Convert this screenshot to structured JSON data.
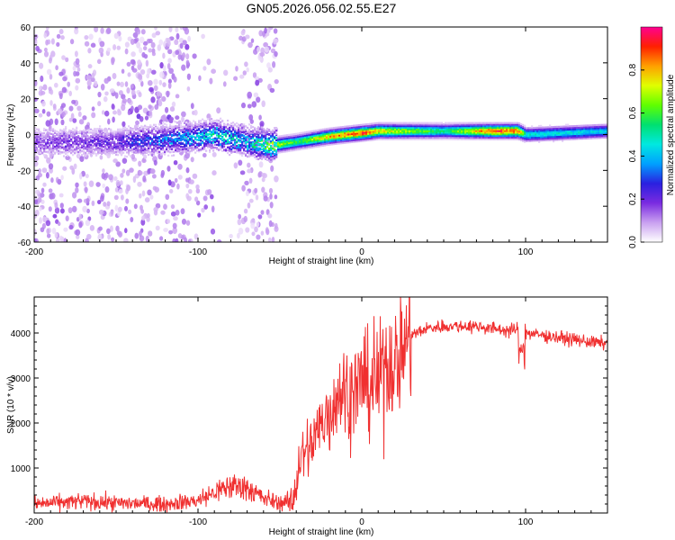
{
  "chart_data": [
    {
      "type": "heatmap",
      "title": "GN05.2026.056.02.55.E27",
      "xlabel": "Height of straight line (km)",
      "ylabel": "Frequency (Hz)",
      "xlim": [
        -200,
        150
      ],
      "ylim": [
        -60,
        60
      ],
      "x_ticks": [
        -200,
        -100,
        0,
        100
      ],
      "x_tick_labels": [
        "-200",
        "-100",
        "0",
        "100"
      ],
      "y_ticks": [
        -60,
        -40,
        -20,
        0,
        20,
        40,
        60
      ],
      "y_tick_labels": [
        "-60",
        "-40",
        "-20",
        "0",
        "20",
        "40",
        "60"
      ],
      "colorbar": {
        "label": "Normalized spectral amplitude",
        "range": [
          0,
          1
        ],
        "ticks": [
          0,
          0.2,
          0.4,
          0.6,
          0.8
        ],
        "tick_labels": [
          "0.0",
          "0.2",
          "0.4",
          "0.6",
          "0.8"
        ],
        "colors": [
          "#ffffff",
          "#c9a0f0",
          "#7a2be0",
          "#2a20e0",
          "#00a0ff",
          "#00e8e0",
          "#00e070",
          "#60ff00",
          "#e0ff00",
          "#ffa000",
          "#ff2000",
          "#ff0090"
        ]
      },
      "ridge": {
        "x": [
          -200,
          -150,
          -110,
          -90,
          -70,
          -55,
          -40,
          -20,
          0,
          10,
          50,
          80,
          95,
          100,
          150
        ],
        "frequency": [
          -4,
          -4,
          -2,
          0,
          -4,
          -6,
          -4,
          -1,
          1,
          2,
          2,
          2,
          2,
          0,
          2
        ],
        "amplitude": [
          0.2,
          0.25,
          0.45,
          0.55,
          0.5,
          0.75,
          0.6,
          0.85,
          0.95,
          0.8,
          0.55,
          0.95,
          0.9,
          0.5,
          0.45
        ]
      }
    },
    {
      "type": "line",
      "title": "",
      "xlabel": "Height of straight line (km)",
      "ylabel": "SNR (10 * v/v)",
      "xlim": [
        -200,
        150
      ],
      "ylim": [
        0,
        4800
      ],
      "x_ticks": [
        -200,
        -100,
        0,
        100
      ],
      "x_tick_labels": [
        "-200",
        "-100",
        "0",
        "100"
      ],
      "y_ticks": [
        1000,
        2000,
        3000,
        4000
      ],
      "y_tick_labels": [
        "1000",
        "2000",
        "3000",
        "4000"
      ],
      "color": "#f03030",
      "series": [
        {
          "name": "SNR",
          "x": [
            -200,
            -170,
            -150,
            -120,
            -100,
            -90,
            -80,
            -70,
            -60,
            -50,
            -42,
            -38,
            -30,
            -20,
            -15,
            -10,
            -5,
            0,
            5,
            10,
            15,
            20,
            25,
            30,
            40,
            50,
            60,
            70,
            80,
            90,
            95,
            97,
            100,
            110,
            120,
            130,
            140,
            150
          ],
          "values": [
            200,
            260,
            220,
            200,
            280,
            450,
            600,
            580,
            320,
            230,
            250,
            1150,
            1600,
            2200,
            2700,
            2700,
            2700,
            2900,
            2800,
            2950,
            3400,
            3300,
            3700,
            3950,
            4100,
            4150,
            4150,
            4150,
            4100,
            4050,
            4100,
            3500,
            4000,
            3950,
            3900,
            3850,
            3800,
            3750
          ]
        }
      ]
    }
  ]
}
